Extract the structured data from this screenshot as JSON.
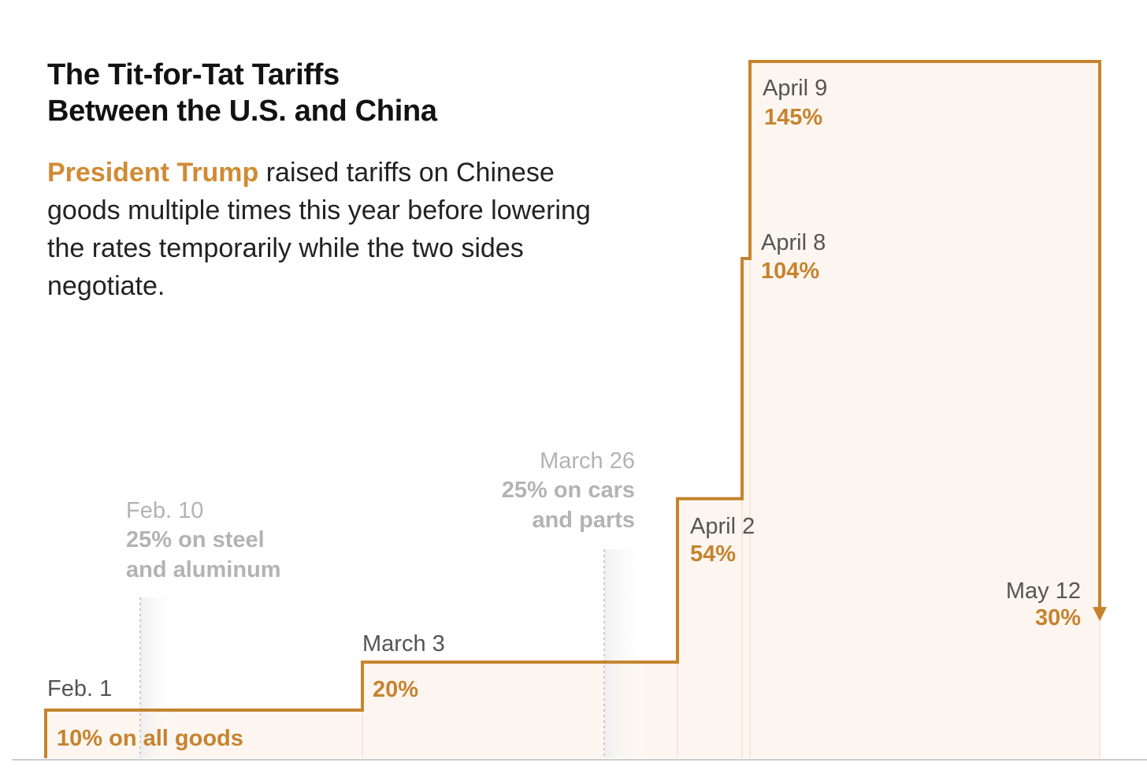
{
  "title": {
    "line1": "The Tit-for-Tat Tariffs",
    "line2": "Between the U.S. and China"
  },
  "description": {
    "highlight": "President Trump",
    "rest": " raised tariffs on Chinese goods multiple times this year before lowering the rates temporarily while the two sides negotiate."
  },
  "colors": {
    "accent": "#c6832e",
    "fill": "#fdf6f0",
    "muted_text": "#b3b3b3",
    "date_text": "#555555",
    "baseline": "#cccccc"
  },
  "chart_data": {
    "type": "area",
    "step": true,
    "ylim": [
      0,
      145
    ],
    "grid": false,
    "legend": "none",
    "series": [
      {
        "points": [
          {
            "date": "Feb. 1",
            "value": 10,
            "label": "10% on all goods"
          },
          {
            "date": "March 3",
            "value": 20,
            "label": "20%"
          },
          {
            "date": "April 2",
            "value": 54,
            "label": "54%"
          },
          {
            "date": "April 8",
            "value": 104,
            "label": "104%"
          },
          {
            "date": "April 9",
            "value": 145,
            "label": "145%"
          },
          {
            "date": "May 12",
            "value": 30,
            "label": "30%"
          }
        ]
      }
    ],
    "annotations": [
      {
        "date": "Feb. 10",
        "lines": [
          "25% on steel",
          "and aluminum"
        ]
      },
      {
        "date": "March 26",
        "lines": [
          "25% on cars",
          "and parts"
        ]
      }
    ]
  }
}
